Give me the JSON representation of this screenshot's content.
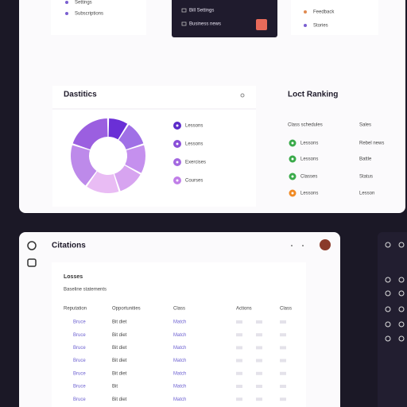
{
  "top": {
    "menu_left": [
      "Settings",
      "Subscriptions"
    ],
    "menu_dark": [
      "Bill Settings",
      "Business news"
    ],
    "menu_right": [
      "Feedback",
      "Stories"
    ]
  },
  "statistics": {
    "title": "Dastitics",
    "legend": [
      "Lessons",
      "Lessons",
      "Exercises",
      "Courses"
    ]
  },
  "ranking": {
    "title": "Loct Ranking",
    "header": [
      "Class schedules",
      "Sales"
    ],
    "rows": [
      [
        "Lessons",
        "Rebel news"
      ],
      [
        "Lessons",
        "Battle"
      ],
      [
        "Classes",
        "Status"
      ],
      [
        "Lessons",
        "Lesson"
      ]
    ]
  },
  "citations": {
    "title": "Citations",
    "panel_title": "Losses",
    "panel_subtitle": "Baseline statements",
    "columns": [
      "Reputation",
      "Opportunities",
      "Class",
      "Actions",
      "Class"
    ],
    "rows": [
      [
        "Bruce",
        "Bit diet",
        "Match"
      ],
      [
        "Bruce",
        "Bit diet",
        "Match"
      ],
      [
        "Bruce",
        "Bit diet",
        "Match"
      ],
      [
        "Bruce",
        "Bit diet",
        "Match"
      ],
      [
        "Bruce",
        "Bit diet",
        "Match"
      ],
      [
        "Bruce",
        "Bit",
        "Match"
      ],
      [
        "Bruce",
        "Bit diet",
        "Match"
      ]
    ]
  }
}
